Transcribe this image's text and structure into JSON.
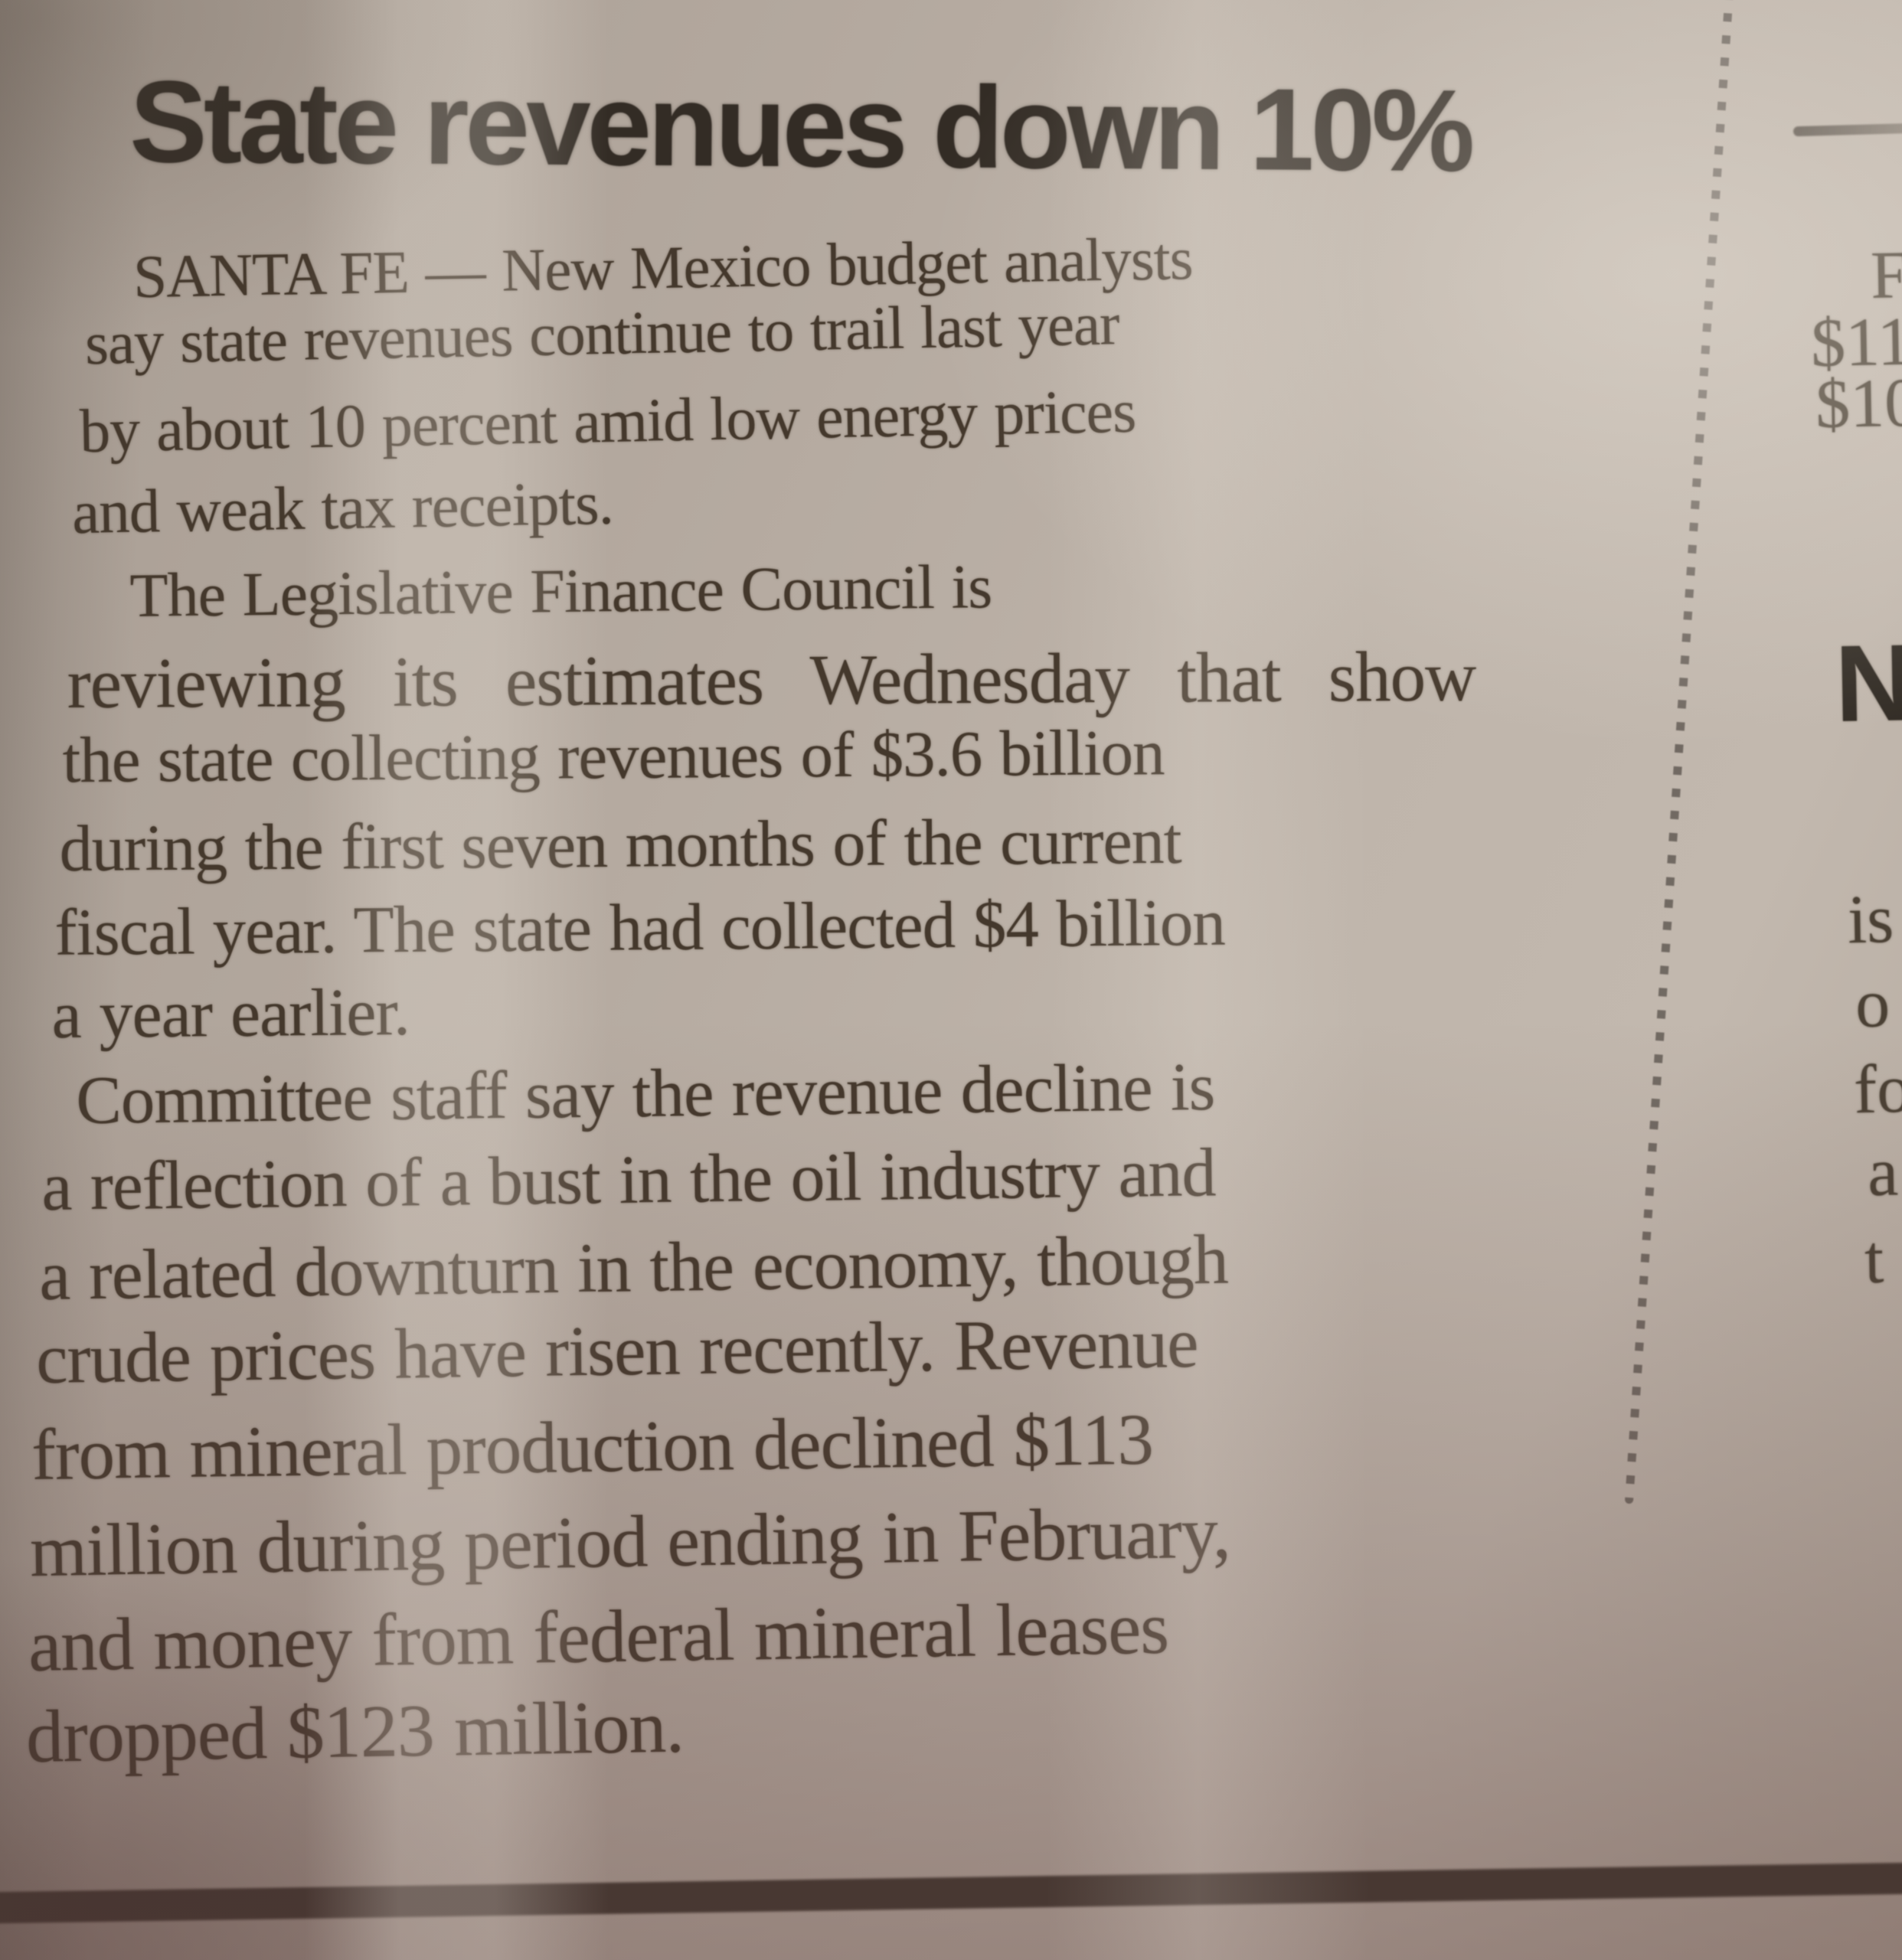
{
  "photo": {
    "headline": "State revenues down 10%",
    "article_lines": [
      "SANTA FE — New Mexico budget analysts",
      "say state revenues continue to trail last year",
      "by about 10 percent amid low energy prices",
      "and weak tax receipts.",
      "The Legislative Finance Council is",
      "reviewing its estimates Wednesday that show",
      "the state collecting revenues of $3.6 billion",
      "during the first seven months of the current",
      "fiscal year. The state had collected $4 billion",
      "a year earlier.",
      "Committee staff say the revenue decline is",
      "a reflection of a bust in the oil industry and",
      "a related downturn in the economy, though",
      "crude prices have risen recently. Revenue",
      "from mineral production declined $113",
      "million during period ending in February,",
      "and money from federal mineral leases",
      "dropped $123 million."
    ],
    "right_column": {
      "partial_letter": "F",
      "amount_top": "$11",
      "amount_bottom": "$10",
      "partial_headline": "N",
      "fragments": [
        "is",
        "o",
        "fo",
        "a",
        "t"
      ]
    },
    "colors": {
      "paper": "#b6aba1",
      "headline_ink": "#332c25",
      "body_ink": "#44382c",
      "rule_ink": "#39322b"
    }
  }
}
